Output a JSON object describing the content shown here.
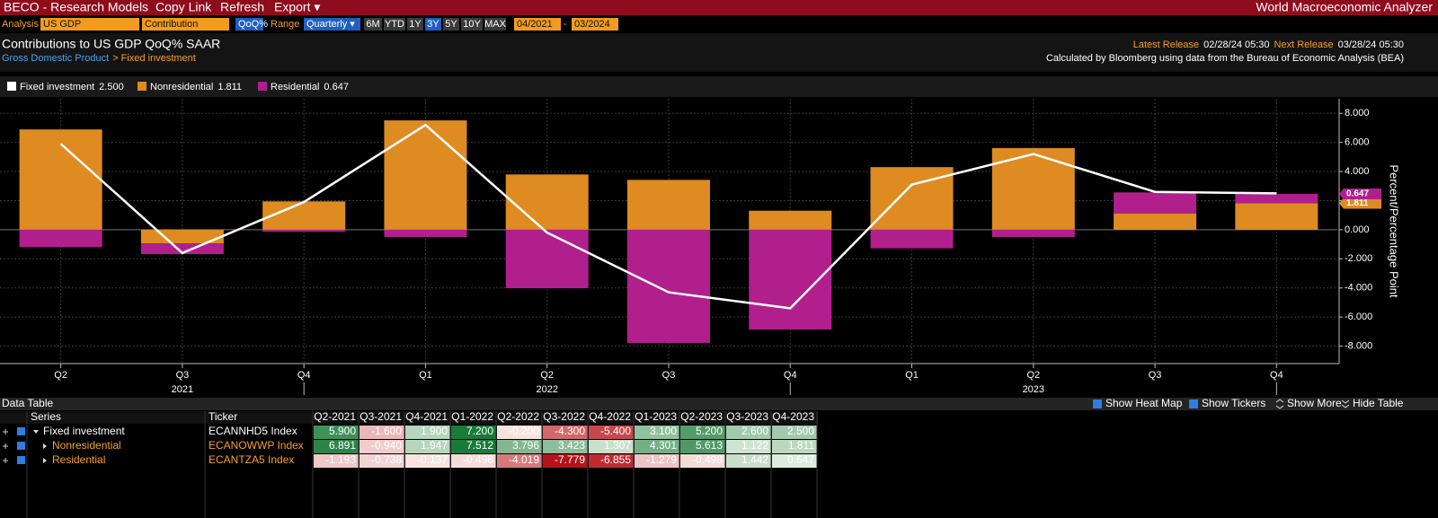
{
  "toolbar": {
    "app": "BECO - Research Models",
    "menu": [
      "Copy Link",
      "Refresh",
      "Export ▾"
    ],
    "title": "World Macroeconomic Analyzer"
  },
  "controls": {
    "analysis_label": "Analysis",
    "analysis": "US GDP",
    "mode": "Contribution",
    "calc": "QoQ%",
    "range_label": "Range",
    "frequency": "Quarterly ▾",
    "periods": [
      "6M",
      "YTD",
      "1Y",
      "3Y",
      "5Y",
      "10Y",
      "MAX"
    ],
    "start": "04/2021",
    "separator": "-",
    "end": "03/2024"
  },
  "header": {
    "title": "Contributions to US GDP QoQ% SAAR",
    "breadcrumb": [
      "Gross Domestic Product",
      "> Fixed investment"
    ],
    "latest_label": "Latest Release",
    "latest": "02/28/24 05:30",
    "next_label": "Next Release",
    "next": "03/28/24 05:30",
    "source": "Calculated by Bloomberg using data from the Bureau of Economic Analysis (BEA)"
  },
  "chart_data": {
    "type": "bar",
    "stacked": true,
    "categories": [
      "Q2",
      "Q3",
      "Q4",
      "Q1",
      "Q2",
      "Q3",
      "Q4",
      "Q1",
      "Q2",
      "Q3",
      "Q4"
    ],
    "year_labels": [
      "2021",
      "2022",
      "2023"
    ],
    "series": [
      {
        "name": "Fixed investment",
        "type": "line",
        "color": "#ffffff",
        "legend_value": "2.500",
        "values": [
          5.9,
          -1.6,
          1.9,
          7.2,
          -0.2,
          -4.3,
          -5.4,
          3.1,
          5.2,
          2.6,
          2.5
        ]
      },
      {
        "name": "Nonresidential",
        "type": "bar",
        "color": "#de8b22",
        "legend_value": "1.811",
        "values": [
          6.891,
          -0.94,
          1.947,
          7.512,
          3.796,
          3.423,
          1.307,
          4.301,
          5.613,
          1.122,
          1.811
        ]
      },
      {
        "name": "Residential",
        "type": "bar",
        "color": "#b11f8d",
        "legend_value": "0.647",
        "values": [
          -1.193,
          -0.738,
          -0.137,
          -0.498,
          -4.019,
          -7.779,
          -6.855,
          -1.279,
          -0.498,
          1.442,
          0.647
        ]
      }
    ],
    "ylabel": "Percent/Percentage Point",
    "ylim": [
      -9.2,
      9.0
    ],
    "yticks": [
      {
        "value": 8,
        "label": "8.000"
      },
      {
        "value": 6,
        "label": "6.000"
      },
      {
        "value": 4,
        "label": "4.000"
      },
      {
        "value": 2,
        "label": "2.000"
      },
      {
        "value": 0,
        "label": "0.000"
      },
      {
        "value": -2,
        "label": "-2.000"
      },
      {
        "value": -4,
        "label": "-4.000"
      },
      {
        "value": -6,
        "label": "-6.000"
      },
      {
        "value": -8,
        "label": "-8.000"
      }
    ],
    "grid": true
  },
  "data_table": {
    "title": "Data Table",
    "options": [
      "Show Heat Map",
      "Show Tickers",
      "Show More",
      "Hide Table"
    ],
    "columns": [
      "Series",
      "Ticker",
      "Q2-2021",
      "Q3-2021",
      "Q4-2021",
      "Q1-2022",
      "Q2-2022",
      "Q3-2022",
      "Q4-2022",
      "Q1-2023",
      "Q2-2023",
      "Q3-2023",
      "Q4-2023"
    ],
    "rows": [
      [
        "Fixed investment",
        "ECANNHD5 Index",
        "5.900",
        "-1.600",
        "1.900",
        "7.200",
        "-0.200",
        "-4.300",
        "-5.400",
        "3.100",
        "5.200",
        "2.600",
        "2.500"
      ],
      [
        "Nonresidential",
        "ECANOWWP Index",
        "6.891",
        "-0.940",
        "1.947",
        "7.512",
        "3.796",
        "3.423",
        "1.307",
        "4.301",
        "5.613",
        "1.122",
        "1.811"
      ],
      [
        "Residential",
        "ECANTZA5 Index",
        "-1.193",
        "-0.738",
        "-0.137",
        "-0.498",
        "-4.019",
        "-7.779",
        "-6.855",
        "-1.279",
        "-0.498",
        "1.442",
        "0.647"
      ]
    ]
  }
}
